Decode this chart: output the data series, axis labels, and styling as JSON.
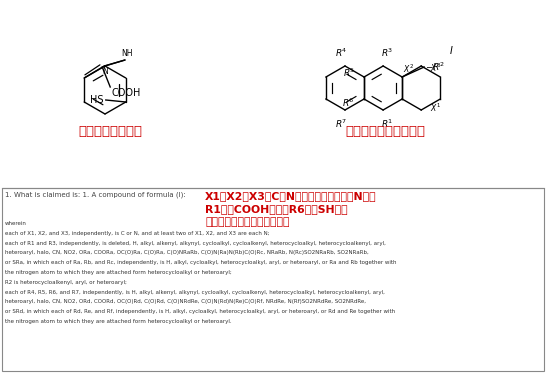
{
  "top_left_label": "设计的目标化合物",
  "top_right_label": "专利原文中保护的结构",
  "red_annotation_line1": "X1，X2，X3为C、N原子，至少有两个是N原子",
  "red_annotation_line2": "R1包括COOH基团，R6包括SH基团",
  "red_annotation_line3": "保护了我们设计的目标化合物",
  "claim_text": "1. What is claimed is: 1. A compound of formula (I):",
  "body_text_lines": [
    "wherein",
    "each of X1, X2, and X3, independently, is C or N, and at least two of X1, X2, and X3 are each N;",
    "each of R1 and R3, independently, is deleted, H, alkyl, alkenyl, alkynyl, cycloalkyl, cycloalkenyl, heterocycloalkyl, heterocycloalkenyl, aryl,",
    "heteroaryl, halo, CN, NO2, ORa, COORa, OC(O)Ra, C(O)Ra, C(O)NRaRb, C(O)N(Ra)N(Rb)C(O)Rc, NRaRb, N(Rc)SO2NRaRb, SO2NRaRb,",
    "or SRa, in which each of Ra, Rb, and Rc, independently, is H, alkyl, cycloalkyl, heterocycloalkyl, aryl, or heteroaryl, or Ra and Rb together with",
    "the nitrogen atom to which they are attached form heterocycloalkyl or heteroaryl;",
    "R2 is heterocycloalkenyl, aryl, or heteroaryl;",
    "each of R4, R5, R6, and R7, independently, is H, alkyl, alkenyl, alkynyl, cycloalkyl, cycloalkenyl, heterocycloalkyl, heterocycloalkenyl, aryl,",
    "heteroaryl, halo, CN, NO2, ORd, COORd, OC(O)Rd, C(O)Rd, C(O)NRdRe, C(O)N(Rd)N(Re)C(O)Rf, NRdRe, N(Rf)SO2NRdRe, SO2NRdRe,",
    "or SRd, in which each of Rd, Re, and Rf, independently, is H, alkyl, cycloalkyl, heterocycloalkyl, aryl, or heteroaryl, or Rd and Re together with",
    "the nitrogen atom to which they are attached form heterocycloalkyl or heteroaryl."
  ],
  "bg_color": "#ffffff",
  "border_color": "#888888",
  "red_color": "#cc0000",
  "black": "#000000",
  "gray_text": "#444444",
  "body_text_color": "#333333",
  "divider_color": "#888888"
}
